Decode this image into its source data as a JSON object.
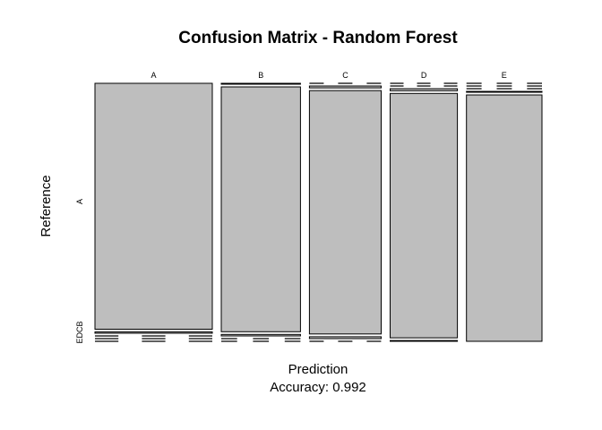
{
  "chart_data": {
    "type": "mosaic",
    "title": "Confusion Matrix - Random Forest",
    "xlabel": "Prediction",
    "xlabel_sub": "Accuracy: 0.992",
    "ylabel": "Reference",
    "x_categories": [
      "A",
      "B",
      "C",
      "D",
      "E"
    ],
    "y_categories": [
      "A",
      "B",
      "C",
      "D",
      "E"
    ],
    "y_tick_labels": {
      "top": "A",
      "bottom": "EDCB"
    },
    "matrix": [
      [
        1670,
        9,
        0,
        0,
        0
      ],
      [
        4,
        1122,
        7,
        0,
        0
      ],
      [
        0,
        8,
        1011,
        8,
        0
      ],
      [
        0,
        0,
        8,
        952,
        3
      ],
      [
        0,
        0,
        0,
        4,
        1077
      ]
    ],
    "cell_fill": "#bebebe",
    "line_color": "#000000"
  }
}
